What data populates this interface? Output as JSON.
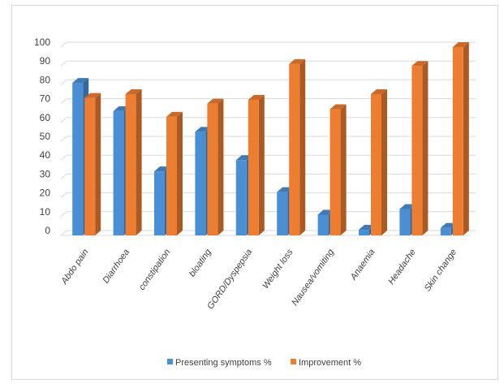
{
  "chart_data": {
    "type": "bar",
    "categories": [
      "Abdo pain",
      "Diarrhoea",
      "constipation",
      "bloating",
      "GORD/Dyspepsia",
      "Weight loss",
      "Nausea/vomiting",
      "Anaemia",
      "Headache",
      "Skin change"
    ],
    "series": [
      {
        "name": "Presenting symptoms %",
        "color": "#4a8fd4",
        "values": [
          81,
          66,
          34,
          55,
          40,
          23,
          11,
          3,
          14,
          4
        ]
      },
      {
        "name": "Improvement %",
        "color": "#ed7d31",
        "values": [
          73,
          75,
          63,
          70,
          72,
          91,
          67,
          75,
          90,
          100
        ]
      }
    ],
    "yticks": [
      "0",
      "10",
      "20",
      "30",
      "40",
      "50",
      "60",
      "70",
      "80",
      "90",
      "100"
    ],
    "ylim": [
      0,
      100
    ],
    "grid": true,
    "legend_position": "bottom",
    "style": "3d-column"
  }
}
